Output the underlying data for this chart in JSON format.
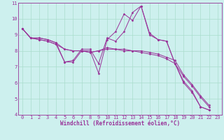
{
  "xlabel": "Windchill (Refroidissement éolien,°C)",
  "background_color": "#cdf0ee",
  "line_color": "#993399",
  "grid_color": "#aaddcc",
  "xlim": [
    -0.5,
    23.5
  ],
  "ylim": [
    4,
    11
  ],
  "xticks": [
    0,
    1,
    2,
    3,
    4,
    5,
    6,
    7,
    8,
    9,
    10,
    11,
    12,
    13,
    14,
    15,
    16,
    17,
    18,
    19,
    20,
    21,
    22,
    23
  ],
  "yticks": [
    4,
    5,
    6,
    7,
    8,
    9,
    10,
    11
  ],
  "series": [
    [
      9.4,
      8.8,
      8.8,
      8.7,
      8.5,
      7.3,
      7.3,
      8.0,
      8.0,
      6.6,
      8.7,
      9.2,
      10.3,
      9.9,
      10.8,
      9.1,
      8.7,
      8.6,
      7.2,
      6.1,
      5.5,
      4.5,
      4.3,
      null
    ],
    [
      9.4,
      8.8,
      8.7,
      8.6,
      8.4,
      7.3,
      7.4,
      8.1,
      8.1,
      7.2,
      8.8,
      8.6,
      9.2,
      10.4,
      10.8,
      9.0,
      8.7,
      8.6,
      7.2,
      6.0,
      5.4,
      4.5,
      4.3,
      null
    ],
    [
      9.4,
      8.8,
      8.8,
      8.7,
      8.5,
      8.1,
      8.0,
      8.0,
      7.9,
      8.0,
      8.2,
      8.1,
      8.1,
      8.0,
      8.0,
      7.9,
      7.8,
      7.6,
      7.4,
      6.5,
      5.9,
      5.2,
      4.6,
      null
    ],
    [
      9.4,
      8.8,
      8.7,
      8.6,
      8.4,
      8.1,
      8.0,
      8.0,
      7.9,
      8.0,
      8.1,
      8.1,
      8.0,
      8.0,
      7.9,
      7.8,
      7.7,
      7.5,
      7.2,
      6.4,
      5.8,
      5.1,
      4.5,
      null
    ]
  ],
  "xlabel_fontsize": 5.5,
  "tick_fontsize": 5,
  "marker": "D",
  "marker_size": 1.5,
  "line_width": 0.7
}
